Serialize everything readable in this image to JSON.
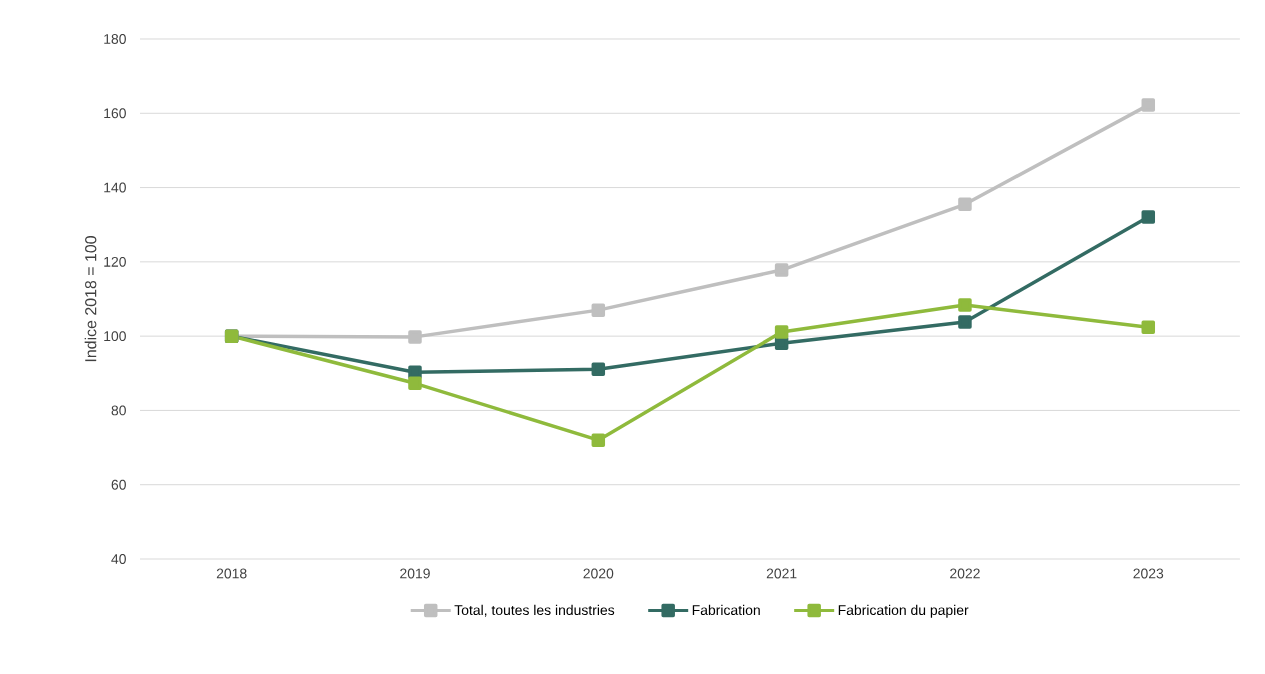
{
  "chart_data": {
    "type": "line",
    "ylabel": "Indice 2018 = 100",
    "categories": [
      "2018",
      "2019",
      "2020",
      "2021",
      "2022",
      "2023"
    ],
    "series": [
      {
        "name": "Total, toutes les industries",
        "color": "#bfbfbf",
        "values": [
          100,
          99.8,
          107.0,
          117.8,
          135.5,
          162.2
        ]
      },
      {
        "name": "Fabrication",
        "color": "#336b63",
        "values": [
          100,
          90.3,
          91.1,
          98.1,
          103.8,
          132.1
        ]
      },
      {
        "name": "Fabrication du papier",
        "color": "#8fba3c",
        "values": [
          100,
          87.3,
          72.0,
          101.1,
          108.4,
          102.4
        ]
      }
    ],
    "ylim": [
      40,
      180
    ],
    "yticks": [
      40,
      60,
      80,
      100,
      120,
      140,
      160,
      180
    ],
    "grid": "y",
    "legend": "bottom",
    "marker": "square",
    "line_style": "solid"
  }
}
